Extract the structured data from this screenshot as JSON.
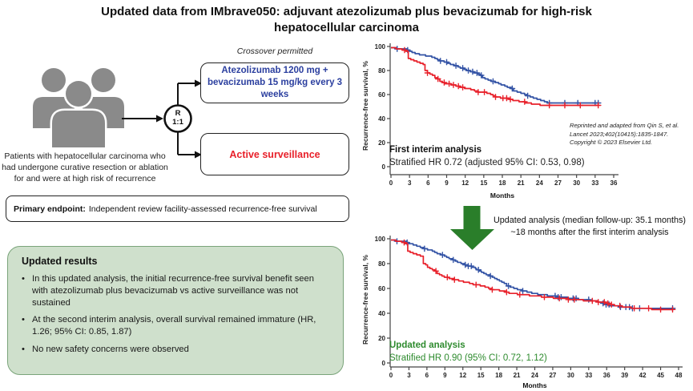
{
  "title": "Updated data from IMbrave050: adjuvant atezolizumab plus bevacizumab for high-risk hepatocellular carcinoma",
  "colors": {
    "arm_a_text": "#2b3f9f",
    "arm_b_text": "#e8202a",
    "atezo_curve": "#3353a5",
    "surveillance_curve": "#e8202a",
    "green_arrow": "#2a7e2a",
    "green_text": "#2e8b2e",
    "results_box_bg": "#cfe0cc",
    "results_box_border": "#7aa47a",
    "people_gray": "#8a8a8a"
  },
  "flow": {
    "patients_text": "Patients with hepatocellular carcinoma who had undergone curative resection or ablation for and were at high risk of recurrence",
    "randomization": {
      "r": "R",
      "ratio": "1:1"
    },
    "crossover_note": "Crossover permitted",
    "arm_a": "Atezolizumab 1200 mg + bevacizumab 15 mg/kg every 3 weeks",
    "arm_b": "Active surveillance"
  },
  "primary_endpoint": {
    "label": "Primary endpoint:",
    "text": "Independent review facility-assessed recurrence-free survival"
  },
  "results": {
    "heading": "Updated results",
    "bullets": [
      "In this updated analysis, the initial recurrence-free survival benefit seen with atezolizumab plus bevacizumab vs active surveillance was not sustained",
      "At the second interim analysis, overall survival remained immature (HR, 1.26; 95% CI: 0.85, 1.87)",
      "No new safety concerns were observed"
    ]
  },
  "between_charts": {
    "line1": "Updated analysis (median follow-up: 35.1 months)",
    "line2": "~18 months after the first interim analysis"
  },
  "chart_data": [
    {
      "type": "line",
      "subtype": "kaplan-meier-step",
      "title": "First interim analysis",
      "hr_text": "Stratified HR 0.72 (adjusted 95% CI: 0.53, 0.98)",
      "xlabel": "Months",
      "ylabel": "Recurrence-free survival, %",
      "xlim": [
        0,
        36
      ],
      "ylim": [
        0,
        100
      ],
      "x_ticks": [
        0,
        3,
        6,
        9,
        12,
        15,
        18,
        21,
        24,
        27,
        30,
        33,
        36
      ],
      "y_ticks": [
        0,
        20,
        40,
        60,
        80,
        100
      ],
      "grid": false,
      "legend": "none",
      "attribution": [
        "Reprinted and adapted from Qin S, et al.",
        "Lancet 2023;402(10415):1835-1847.",
        "Copyright © 2023 Elsevier Ltd."
      ],
      "series": [
        {
          "name": "Atezolizumab + bevacizumab",
          "color": "#3353a5",
          "steps": [
            [
              0,
              99
            ],
            [
              0.8,
              98
            ],
            [
              2.6,
              97
            ],
            [
              3,
              96
            ],
            [
              3.4,
              95
            ],
            [
              3.9,
              94
            ],
            [
              4.6,
              93
            ],
            [
              5.6,
              92
            ],
            [
              6.6,
              91
            ],
            [
              7.1,
              90
            ],
            [
              7.5,
              89
            ],
            [
              7.9,
              88
            ],
            [
              8.6,
              87
            ],
            [
              9.1,
              86
            ],
            [
              9.6,
              85
            ],
            [
              10.2,
              84
            ],
            [
              10.8,
              83
            ],
            [
              11.2,
              82
            ],
            [
              11.8,
              81
            ],
            [
              12.2,
              80
            ],
            [
              12.8,
              79
            ],
            [
              13.4,
              78
            ],
            [
              14,
              77
            ],
            [
              14.4,
              76
            ],
            [
              14.8,
              74
            ],
            [
              15.2,
              73
            ],
            [
              15.7,
              72
            ],
            [
              16.2,
              71
            ],
            [
              16.8,
              70
            ],
            [
              17.4,
              69
            ],
            [
              17.8,
              68
            ],
            [
              18.4,
              67
            ],
            [
              18.8,
              66
            ],
            [
              19.4,
              65
            ],
            [
              19.8,
              63
            ],
            [
              20.4,
              62
            ],
            [
              21,
              61
            ],
            [
              21.6,
              60
            ],
            [
              22,
              59
            ],
            [
              22.5,
              58
            ],
            [
              23,
              57
            ],
            [
              23.6,
              56
            ],
            [
              24.2,
              55
            ],
            [
              24.8,
              54
            ],
            [
              25.3,
              53
            ],
            [
              33.5,
              53
            ]
          ],
          "censors": [
            1,
            2.7,
            8,
            9,
            10.5,
            11.6,
            12.5,
            13.2,
            13.9,
            14.6,
            16.5,
            19.6,
            22.1,
            25.6,
            28.1,
            30.2,
            33,
            33.5
          ]
        },
        {
          "name": "Active surveillance",
          "color": "#e8202a",
          "steps": [
            [
              0,
              99
            ],
            [
              0.8,
              98
            ],
            [
              1.8,
              97
            ],
            [
              2.4,
              96
            ],
            [
              2.8,
              90
            ],
            [
              3.2,
              89
            ],
            [
              3.7,
              88
            ],
            [
              4.2,
              87
            ],
            [
              4.7,
              86
            ],
            [
              5.2,
              85
            ],
            [
              5.5,
              80
            ],
            [
              5.9,
              78
            ],
            [
              6.3,
              77
            ],
            [
              6.7,
              76
            ],
            [
              7.1,
              74
            ],
            [
              7.5,
              73
            ],
            [
              7.9,
              71
            ],
            [
              8.3,
              70
            ],
            [
              8.7,
              69
            ],
            [
              9.7,
              68
            ],
            [
              10.5,
              67
            ],
            [
              11.1,
              66
            ],
            [
              11.9,
              65
            ],
            [
              12.9,
              64
            ],
            [
              13.5,
              63
            ],
            [
              14.1,
              62
            ],
            [
              15.5,
              61
            ],
            [
              16.1,
              60
            ],
            [
              16.5,
              59
            ],
            [
              16.9,
              58
            ],
            [
              17.7,
              57
            ],
            [
              19.1,
              56
            ],
            [
              19.7,
              55
            ],
            [
              20.7,
              54
            ],
            [
              21.7,
              53
            ],
            [
              22.7,
              52
            ],
            [
              24.1,
              51
            ],
            [
              33.5,
              51
            ]
          ],
          "censors": [
            2.2,
            5.9,
            7.6,
            8.6,
            9.4,
            10.1,
            10.9,
            11.6,
            14.1,
            15.1,
            16.9,
            18.1,
            18.7,
            19.3,
            21.6,
            25.6,
            28.1,
            30.6,
            33.5
          ]
        }
      ]
    },
    {
      "type": "line",
      "subtype": "kaplan-meier-step",
      "title": "Updated analysis",
      "hr_text": "Stratified HR 0.90 (95% CI: 0.72, 1.12)",
      "xlabel": "Months",
      "ylabel": "Recurrence-free survival, %",
      "xlim": [
        0,
        48
      ],
      "ylim": [
        0,
        100
      ],
      "x_ticks": [
        0,
        3,
        6,
        9,
        12,
        15,
        18,
        21,
        24,
        27,
        30,
        33,
        36,
        39,
        42,
        45,
        48
      ],
      "y_ticks": [
        0,
        20,
        40,
        60,
        80,
        100
      ],
      "grid": false,
      "legend": "none",
      "series": [
        {
          "name": "Atezolizumab + bevacizumab",
          "color": "#3353a5",
          "steps": [
            [
              0,
              99
            ],
            [
              0.8,
              98
            ],
            [
              2.6,
              97
            ],
            [
              3,
              96
            ],
            [
              3.7,
              95
            ],
            [
              4.3,
              94
            ],
            [
              4.9,
              93
            ],
            [
              5.5,
              92
            ],
            [
              6.1,
              91
            ],
            [
              6.9,
              90
            ],
            [
              7.3,
              89
            ],
            [
              7.7,
              88
            ],
            [
              8.3,
              87
            ],
            [
              8.9,
              86
            ],
            [
              9.3,
              85
            ],
            [
              9.7,
              84
            ],
            [
              10.3,
              83
            ],
            [
              10.7,
              82
            ],
            [
              11.1,
              81
            ],
            [
              11.7,
              80
            ],
            [
              12.3,
              79
            ],
            [
              12.9,
              78
            ],
            [
              13.5,
              77
            ],
            [
              14.1,
              76
            ],
            [
              14.3,
              75
            ],
            [
              14.7,
              74
            ],
            [
              15.1,
              73
            ],
            [
              15.5,
              72
            ],
            [
              15.9,
              71
            ],
            [
              16.5,
              70
            ],
            [
              16.9,
              69
            ],
            [
              17.3,
              68
            ],
            [
              17.7,
              67
            ],
            [
              18.1,
              66
            ],
            [
              18.5,
              65
            ],
            [
              18.9,
              64
            ],
            [
              19.3,
              62
            ],
            [
              19.9,
              61
            ],
            [
              20.5,
              60
            ],
            [
              21.1,
              59
            ],
            [
              21.9,
              58
            ],
            [
              22.7,
              57
            ],
            [
              23.5,
              56
            ],
            [
              24.5,
              55
            ],
            [
              26.1,
              54
            ],
            [
              27.7,
              53
            ],
            [
              29.5,
              52
            ],
            [
              31.3,
              51
            ],
            [
              33.1,
              50
            ],
            [
              34.5,
              49
            ],
            [
              35.3,
              48
            ],
            [
              35.9,
              47
            ],
            [
              36.5,
              46
            ],
            [
              38.1,
              45
            ],
            [
              40.1,
              44
            ],
            [
              47,
              44
            ]
          ],
          "censors": [
            1,
            2.7,
            5.6,
            8.6,
            10.4,
            12.4,
            12.9,
            13.4,
            14.6,
            16.6,
            19.6,
            22,
            27.4,
            27.9,
            28.4,
            30.4,
            30.9,
            33,
            35.4,
            35.9,
            36.4,
            38.3,
            39.2,
            39.8,
            40.3,
            41.5,
            47
          ]
        },
        {
          "name": "Active surveillance",
          "color": "#e8202a",
          "steps": [
            [
              0,
              99
            ],
            [
              0.8,
              98
            ],
            [
              1.8,
              97
            ],
            [
              2.4,
              96
            ],
            [
              2.8,
              90
            ],
            [
              3.2,
              89
            ],
            [
              3.7,
              88
            ],
            [
              4.3,
              87
            ],
            [
              4.9,
              86
            ],
            [
              5.4,
              80
            ],
            [
              5.8,
              79
            ],
            [
              6.1,
              77
            ],
            [
              6.5,
              76
            ],
            [
              6.9,
              75
            ],
            [
              7.3,
              74
            ],
            [
              7.7,
              72
            ],
            [
              8.1,
              71
            ],
            [
              8.5,
              70
            ],
            [
              8.9,
              69
            ],
            [
              9.7,
              68
            ],
            [
              10.5,
              67
            ],
            [
              11.3,
              66
            ],
            [
              12.1,
              65
            ],
            [
              13.1,
              64
            ],
            [
              13.7,
              63
            ],
            [
              14.9,
              62
            ],
            [
              15.7,
              61
            ],
            [
              16.3,
              60
            ],
            [
              16.9,
              59
            ],
            [
              18.1,
              58
            ],
            [
              19.1,
              57
            ],
            [
              19.7,
              56
            ],
            [
              21.1,
              55
            ],
            [
              23.1,
              54
            ],
            [
              25.1,
              53
            ],
            [
              27.1,
              52
            ],
            [
              29.6,
              51
            ],
            [
              32.1,
              50
            ],
            [
              34.6,
              49
            ],
            [
              35.9,
              48
            ],
            [
              36.5,
              47
            ],
            [
              37.3,
              46
            ],
            [
              38.6,
              45
            ],
            [
              40.1,
              44
            ],
            [
              43.5,
              43
            ],
            [
              47,
              43
            ]
          ],
          "censors": [
            2.2,
            7.5,
            9.4,
            10.6,
            14.2,
            16.9,
            19.3,
            21.5,
            25.6,
            28.1,
            29.6,
            30.6,
            33.6,
            34.6,
            35.6,
            36.2,
            36.8,
            38.2,
            40.6,
            43,
            45,
            47
          ]
        }
      ]
    }
  ]
}
